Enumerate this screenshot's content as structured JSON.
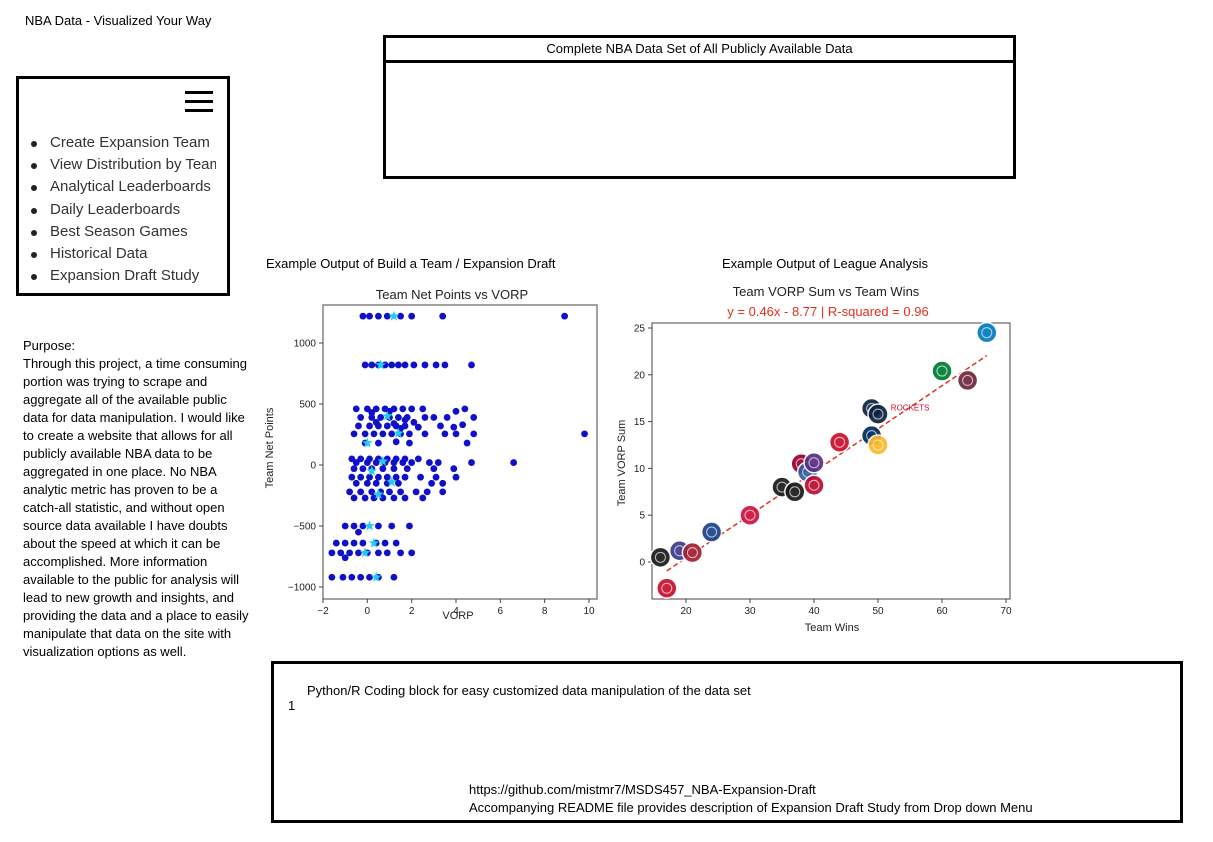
{
  "header": {
    "title": "NBA Data - Visualized Your Way"
  },
  "menu": {
    "icon": "hamburger-menu-icon",
    "items": [
      {
        "label": "Create Expansion Team"
      },
      {
        "label": "View Distribution by Team"
      },
      {
        "label": "Analytical Leaderboards"
      },
      {
        "label": "Daily Leaderboards"
      },
      {
        "label": "Best Season Games"
      },
      {
        "label": "Historical Data"
      },
      {
        "label": "Expansion Draft Study"
      }
    ]
  },
  "purpose": {
    "heading": "Purpose:",
    "text": "Through this project, a time consuming portion was trying to scrape and aggregate all of the available public data for data manipulation. I would like to create a website that allows for all publicly available NBA data to be aggregated in one place. No NBA analytic metric has proven to be a catch-all statistic, and without open source data available I have doubts about the speed at which it can be accomplished. More information available to the public for analysis will lead to new growth and insights, and providing the data and a place to easily manipulate that data on the site with visualization options as well."
  },
  "dataset": {
    "title": "Complete NBA Data Set of All Publicly Available Data"
  },
  "captions": {
    "left": "Example Output of Build a Team / Expansion Draft",
    "right": "Example Output of League Analysis"
  },
  "code_block": {
    "line_number": "1",
    "label": "Python/R Coding block for easy customized data manipulation of the data set",
    "link": "https://github.com/mistmr7/MSDS457_NBA-Expansion-Draft",
    "note": "Accompanying README file provides description of Expansion Draft Study from Drop down Menu"
  },
  "chart_data": [
    {
      "type": "scatter",
      "title": "Team Net Points vs VORP",
      "xlabel": "VORP",
      "ylabel": "Team Net Points",
      "xlim": [
        -2,
        10
      ],
      "ylim": [
        -1000,
        1250
      ],
      "xticks": [
        "−2",
        "0",
        "2",
        "4",
        "6",
        "8",
        "10"
      ],
      "yticks": [
        "−1000",
        "−500",
        "0",
        "500",
        "1000"
      ],
      "grid": false,
      "colors": {
        "points": "#1010c8",
        "highlight": "#22ccee"
      },
      "series": [
        {
          "marker": "circle",
          "points": [
            [
              -0.2,
              1220
            ],
            [
              0.1,
              1220
            ],
            [
              0.5,
              1220
            ],
            [
              0.9,
              1220
            ],
            [
              1.5,
              1220
            ],
            [
              2.0,
              1220
            ],
            [
              3.4,
              1220
            ],
            [
              8.9,
              1220
            ],
            [
              -0.1,
              820
            ],
            [
              0.2,
              820
            ],
            [
              0.5,
              820
            ],
            [
              0.8,
              820
            ],
            [
              1.1,
              820
            ],
            [
              1.4,
              820
            ],
            [
              1.7,
              820
            ],
            [
              2.1,
              820
            ],
            [
              2.6,
              820
            ],
            [
              3.1,
              820
            ],
            [
              3.5,
              820
            ],
            [
              4.7,
              820
            ],
            [
              -0.5,
              460
            ],
            [
              0.0,
              460
            ],
            [
              0.4,
              460
            ],
            [
              0.8,
              460
            ],
            [
              1.2,
              460
            ],
            [
              1.6,
              460
            ],
            [
              2.0,
              460
            ],
            [
              2.5,
              460
            ],
            [
              4.4,
              460
            ],
            [
              4.0,
              440
            ],
            [
              1.0,
              440
            ],
            [
              0.2,
              430
            ],
            [
              -0.3,
              390
            ],
            [
              0.2,
              390
            ],
            [
              0.6,
              390
            ],
            [
              1.0,
              390
            ],
            [
              1.4,
              390
            ],
            [
              1.8,
              390
            ],
            [
              2.6,
              390
            ],
            [
              3.0,
              390
            ],
            [
              3.6,
              390
            ],
            [
              4.8,
              390
            ],
            [
              0.4,
              350
            ],
            [
              1.2,
              340
            ],
            [
              2.1,
              350
            ],
            [
              1.7,
              370
            ],
            [
              -0.4,
              320
            ],
            [
              0.1,
              320
            ],
            [
              0.5,
              320
            ],
            [
              0.9,
              320
            ],
            [
              1.3,
              320
            ],
            [
              1.7,
              320
            ],
            [
              2.3,
              310
            ],
            [
              3.3,
              320
            ],
            [
              3.9,
              310
            ],
            [
              4.3,
              330
            ],
            [
              1.5,
              300
            ],
            [
              -0.6,
              255
            ],
            [
              -0.1,
              255
            ],
            [
              0.3,
              255
            ],
            [
              0.7,
              255
            ],
            [
              1.1,
              255
            ],
            [
              1.5,
              255
            ],
            [
              1.9,
              255
            ],
            [
              2.6,
              255
            ],
            [
              3.5,
              255
            ],
            [
              4.0,
              255
            ],
            [
              4.8,
              255
            ],
            [
              9.8,
              255
            ],
            [
              -0.1,
              180
            ],
            [
              0.5,
              180
            ],
            [
              1.3,
              190
            ],
            [
              1.9,
              180
            ],
            [
              4.5,
              180
            ],
            [
              -0.7,
              50
            ],
            [
              -0.3,
              50
            ],
            [
              0.1,
              50
            ],
            [
              0.5,
              50
            ],
            [
              0.9,
              50
            ],
            [
              1.3,
              50
            ],
            [
              1.7,
              50
            ],
            [
              2.3,
              50
            ],
            [
              -0.5,
              20
            ],
            [
              0.0,
              20
            ],
            [
              0.4,
              20
            ],
            [
              0.8,
              20
            ],
            [
              1.2,
              20
            ],
            [
              1.6,
              20
            ],
            [
              2.0,
              20
            ],
            [
              2.8,
              20
            ],
            [
              3.2,
              20
            ],
            [
              4.7,
              20
            ],
            [
              6.6,
              20
            ],
            [
              -0.6,
              -30
            ],
            [
              -0.2,
              -30
            ],
            [
              0.2,
              -30
            ],
            [
              0.7,
              -30
            ],
            [
              1.2,
              -30
            ],
            [
              1.8,
              -30
            ],
            [
              3.0,
              -30
            ],
            [
              3.9,
              -30
            ],
            [
              -0.7,
              -100
            ],
            [
              -0.3,
              -100
            ],
            [
              0.1,
              -100
            ],
            [
              0.5,
              -100
            ],
            [
              0.9,
              -100
            ],
            [
              1.3,
              -100
            ],
            [
              1.7,
              -100
            ],
            [
              2.4,
              -100
            ],
            [
              3.1,
              -100
            ],
            [
              4.0,
              -100
            ],
            [
              -0.5,
              -150
            ],
            [
              0.0,
              -150
            ],
            [
              0.4,
              -150
            ],
            [
              0.9,
              -150
            ],
            [
              1.4,
              -150
            ],
            [
              2.9,
              -150
            ],
            [
              3.4,
              -150
            ],
            [
              -0.8,
              -220
            ],
            [
              -0.3,
              -220
            ],
            [
              0.2,
              -220
            ],
            [
              0.6,
              -220
            ],
            [
              1.0,
              -220
            ],
            [
              1.5,
              -220
            ],
            [
              2.2,
              -220
            ],
            [
              2.7,
              -220
            ],
            [
              3.4,
              -220
            ],
            [
              -0.6,
              -270
            ],
            [
              -0.1,
              -270
            ],
            [
              0.3,
              -270
            ],
            [
              0.7,
              -270
            ],
            [
              1.2,
              -270
            ],
            [
              1.7,
              -270
            ],
            [
              2.5,
              -270
            ],
            [
              -1.0,
              -500
            ],
            [
              -0.6,
              -500
            ],
            [
              -0.2,
              -500
            ],
            [
              0.5,
              -500
            ],
            [
              1.1,
              -500
            ],
            [
              1.9,
              -500
            ],
            [
              -0.4,
              -550
            ],
            [
              -1.4,
              -640
            ],
            [
              -1.0,
              -640
            ],
            [
              -0.6,
              -640
            ],
            [
              -0.2,
              -640
            ],
            [
              0.4,
              -640
            ],
            [
              0.8,
              -640
            ],
            [
              1.3,
              -640
            ],
            [
              -1.6,
              -720
            ],
            [
              -1.2,
              -720
            ],
            [
              -0.8,
              -720
            ],
            [
              -0.4,
              -720
            ],
            [
              0.0,
              -720
            ],
            [
              0.5,
              -720
            ],
            [
              0.9,
              -720
            ],
            [
              1.5,
              -720
            ],
            [
              2.0,
              -720
            ],
            [
              -1.0,
              -760
            ],
            [
              -1.6,
              -920
            ],
            [
              -1.1,
              -920
            ],
            [
              -0.7,
              -920
            ],
            [
              -0.3,
              -920
            ],
            [
              0.1,
              -920
            ],
            [
              0.5,
              -920
            ],
            [
              1.2,
              -920
            ]
          ]
        },
        {
          "marker": "star",
          "points": [
            [
              1.2,
              1220
            ],
            [
              0.6,
              820
            ],
            [
              0.9,
              400
            ],
            [
              1.4,
              260
            ],
            [
              0.0,
              180
            ],
            [
              0.7,
              30
            ],
            [
              0.2,
              -50
            ],
            [
              1.1,
              -140
            ],
            [
              0.5,
              -240
            ],
            [
              0.1,
              -500
            ],
            [
              0.3,
              -640
            ],
            [
              -0.1,
              -720
            ],
            [
              0.4,
              -920
            ]
          ]
        }
      ]
    },
    {
      "type": "scatter",
      "title": "Team VORP Sum vs Team Wins",
      "subtitle": "y = 0.46x - 8.77  |  R-squared = 0.96",
      "xlabel": "Team Wins",
      "ylabel": "Team VORP Sum",
      "xlim": [
        15,
        70
      ],
      "ylim": [
        -4.5,
        25.5
      ],
      "xticks": [
        "20",
        "30",
        "40",
        "50",
        "60",
        "70"
      ],
      "yticks": [
        "0",
        "5",
        "10",
        "15",
        "20",
        "25"
      ],
      "grid": false,
      "regression": {
        "slope": 0.46,
        "intercept": -8.77,
        "x_range": [
          17,
          67
        ]
      },
      "colors": {
        "trend": "#e03020",
        "subtitle": "#e03020"
      },
      "labels": [
        "ROCKETS"
      ],
      "points": [
        {
          "x": 17,
          "y": -2.8,
          "color": "#c8102e"
        },
        {
          "x": 16,
          "y": 0.5,
          "color": "#1a1a1a"
        },
        {
          "x": 19,
          "y": 1.2,
          "color": "#3a3a8a"
        },
        {
          "x": 21,
          "y": 1.0,
          "color": "#a02030"
        },
        {
          "x": 24,
          "y": 3.2,
          "color": "#1d428a"
        },
        {
          "x": 30,
          "y": 5.0,
          "color": "#ce1141"
        },
        {
          "x": 35,
          "y": 8.0,
          "color": "#1a1a1a"
        },
        {
          "x": 37,
          "y": 7.5,
          "color": "#1a1a1a"
        },
        {
          "x": 38,
          "y": 10.5,
          "color": "#98002e"
        },
        {
          "x": 39,
          "y": 9.6,
          "color": "#3060a0"
        },
        {
          "x": 40,
          "y": 8.2,
          "color": "#ba0c2f"
        },
        {
          "x": 40,
          "y": 10.6,
          "color": "#5a2d81"
        },
        {
          "x": 44,
          "y": 12.8,
          "color": "#c8102e"
        },
        {
          "x": 49,
          "y": 16.4,
          "color": "#0c2340"
        },
        {
          "x": 50,
          "y": 15.8,
          "color": "#0e2240"
        },
        {
          "x": 49,
          "y": 13.5,
          "color": "#002b5c"
        },
        {
          "x": 50,
          "y": 12.5,
          "color": "#fdb927"
        },
        {
          "x": 60,
          "y": 20.4,
          "color": "#007a33"
        },
        {
          "x": 64,
          "y": 19.4,
          "color": "#6f263d"
        },
        {
          "x": 67,
          "y": 24.5,
          "color": "#007ac1"
        }
      ]
    }
  ]
}
